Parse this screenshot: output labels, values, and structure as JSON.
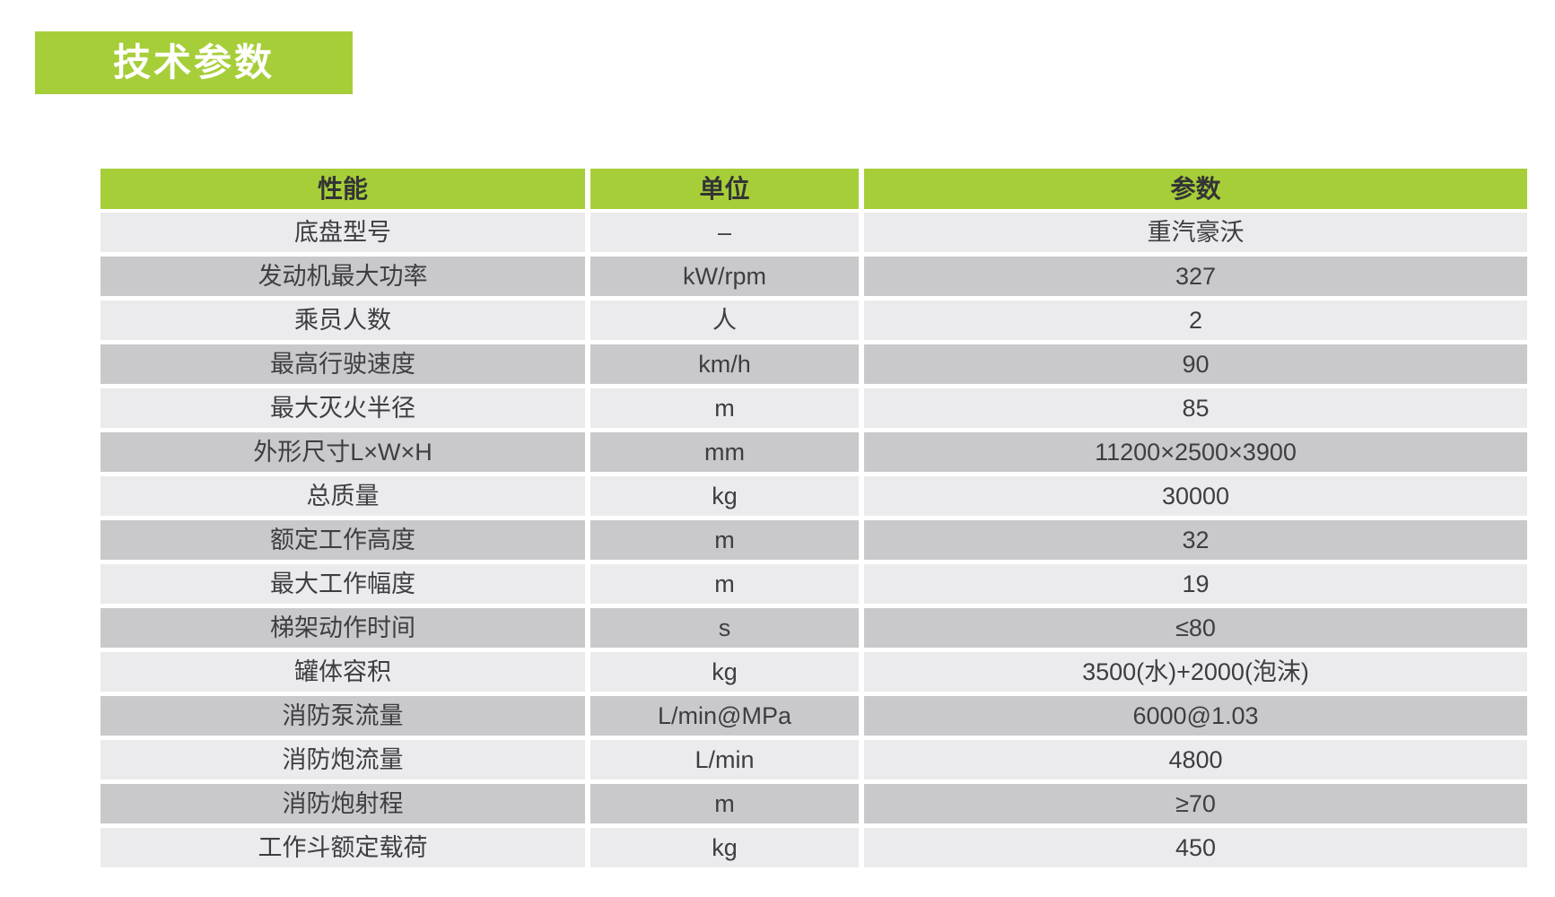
{
  "title": {
    "text": "技术参数",
    "bg_color": "#a6ce39",
    "text_color": "#ffffff"
  },
  "table": {
    "header": {
      "bg_color": "#a6ce39",
      "columns": [
        {
          "label": "性能"
        },
        {
          "label": "单位"
        },
        {
          "label": "参数"
        }
      ]
    },
    "row_colors": {
      "light": "#ebebed",
      "dark": "#c9c9cb"
    },
    "text_color": "#3e3e40",
    "rows": [
      {
        "name": "底盘型号",
        "unit": "–",
        "value": "重汽豪沃"
      },
      {
        "name": "发动机最大功率",
        "unit": "kW/rpm",
        "value": "327"
      },
      {
        "name": "乘员人数",
        "unit": "人",
        "value": "2"
      },
      {
        "name": "最高行驶速度",
        "unit": "km/h",
        "value": "90"
      },
      {
        "name": "最大灭火半径",
        "unit": "m",
        "value": "85"
      },
      {
        "name": "外形尺寸L×W×H",
        "unit": "mm",
        "value": "11200×2500×3900"
      },
      {
        "name": "总质量",
        "unit": "kg",
        "value": "30000"
      },
      {
        "name": "额定工作高度",
        "unit": "m",
        "value": "32"
      },
      {
        "name": "最大工作幅度",
        "unit": "m",
        "value": "19"
      },
      {
        "name": "梯架动作时间",
        "unit": "s",
        "value": "≤80"
      },
      {
        "name": "罐体容积",
        "unit": "kg",
        "value": "3500(水)+2000(泡沫)"
      },
      {
        "name": "消防泵流量",
        "unit": "L/min@MPa",
        "value": "6000@1.03"
      },
      {
        "name": "消防炮流量",
        "unit": "L/min",
        "value": "4800"
      },
      {
        "name": "消防炮射程",
        "unit": "m",
        "value": "≥70"
      },
      {
        "name": "工作斗额定载荷",
        "unit": "kg",
        "value": "450"
      }
    ]
  }
}
